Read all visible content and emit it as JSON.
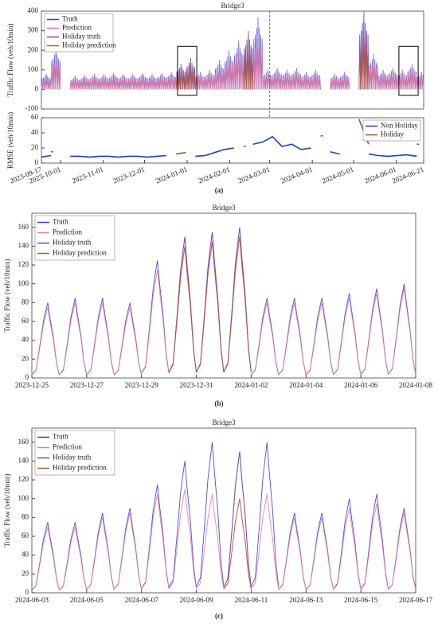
{
  "chart_data": [
    {
      "type": "line",
      "title": "Bridge3",
      "ylabel": "Traffic Flow (veh/10min)",
      "x": [
        "2023-09-17",
        "2023-09-24",
        "2023-10-01",
        "2023-10-08",
        "2023-10-15",
        "2023-10-22",
        "2023-10-29",
        "2023-11-05",
        "2023-11-12",
        "2023-11-19",
        "2023-11-26",
        "2023-12-03",
        "2023-12-10",
        "2023-12-17",
        "2023-12-24",
        "2023-12-31",
        "2024-01-07",
        "2024-01-14",
        "2024-01-21",
        "2024-01-28",
        "2024-02-04",
        "2024-02-11",
        "2024-02-18",
        "2024-02-25",
        "2024-03-03",
        "2024-03-10",
        "2024-03-17",
        "2024-03-24",
        "2024-03-31",
        "2024-04-07",
        "2024-04-14",
        "2024-04-21",
        "2024-04-28",
        "2024-05-05",
        "2024-05-12",
        "2024-05-19",
        "2024-05-26",
        "2024-06-02",
        "2024-06-09",
        "2024-06-16"
      ],
      "series": [
        {
          "name": "Truth",
          "color": "#3a3ad6",
          "values": [
            80,
            210,
            null,
            70,
            75,
            80,
            80,
            85,
            80,
            80,
            85,
            80,
            85,
            90,
            130,
            160,
            90,
            100,
            150,
            200,
            250,
            300,
            370,
            100,
            110,
            100,
            110,
            90,
            100,
            null,
            80,
            90,
            null,
            400,
            180,
            100,
            110,
            100,
            130,
            90
          ]
        },
        {
          "name": "Prediction",
          "color": "#e87a9a",
          "values": [
            60,
            160,
            null,
            60,
            65,
            70,
            70,
            70,
            70,
            70,
            70,
            70,
            70,
            75,
            100,
            120,
            80,
            85,
            120,
            160,
            200,
            230,
            280,
            85,
            95,
            85,
            95,
            80,
            85,
            null,
            70,
            75,
            null,
            300,
            150,
            85,
            95,
            85,
            110,
            80
          ]
        },
        {
          "name": "Holiday truth",
          "color": "#7a4ab0",
          "values": [
            null,
            null,
            null,
            null,
            null,
            null,
            null,
            null,
            null,
            null,
            null,
            null,
            null,
            null,
            130,
            160,
            null,
            null,
            null,
            null,
            null,
            300,
            null,
            null,
            null,
            null,
            null,
            null,
            null,
            null,
            null,
            null,
            null,
            400,
            null,
            null,
            null,
            null,
            null,
            null
          ]
        },
        {
          "name": "Holiday prediction",
          "color": "#b05a3a",
          "values": [
            null,
            null,
            null,
            null,
            null,
            null,
            null,
            null,
            null,
            null,
            null,
            null,
            null,
            null,
            100,
            120,
            null,
            null,
            null,
            null,
            null,
            230,
            null,
            null,
            null,
            null,
            null,
            null,
            null,
            null,
            null,
            null,
            null,
            300,
            null,
            null,
            null,
            null,
            null,
            null
          ]
        }
      ],
      "xlim": [
        "2023-09-17",
        "2024-06-21"
      ],
      "ylim": [
        -100,
        400
      ],
      "yticks": [
        -100,
        0,
        100,
        200,
        300,
        400
      ],
      "vline": "2024-03-01",
      "highlights": [
        [
          "2023-12-25",
          "2024-01-08"
        ],
        [
          "2024-06-03",
          "2024-06-17"
        ]
      ],
      "legend": "upper left"
    },
    {
      "type": "line",
      "ylabel": "RMSE (veh/10min)",
      "label": "(a)",
      "x": [
        "2023-09-17",
        "2023-09-24",
        "2023-10-01",
        "2023-10-08",
        "2023-10-15",
        "2023-10-22",
        "2023-10-29",
        "2023-11-05",
        "2023-11-12",
        "2023-11-19",
        "2023-11-26",
        "2023-12-03",
        "2023-12-10",
        "2023-12-17",
        "2023-12-24",
        "2023-12-31",
        "2024-01-07",
        "2024-01-14",
        "2024-01-21",
        "2024-01-28",
        "2024-02-04",
        "2024-02-11",
        "2024-02-18",
        "2024-02-25",
        "2024-03-03",
        "2024-03-10",
        "2024-03-17",
        "2024-03-24",
        "2024-03-31",
        "2024-04-07",
        "2024-04-14",
        "2024-04-21",
        "2024-04-28",
        "2024-05-05",
        "2024-05-12",
        "2024-05-19",
        "2024-05-26",
        "2024-06-02",
        "2024-06-09",
        "2024-06-16"
      ],
      "series": [
        {
          "name": "Non Holiday",
          "color": "#1f3fbf",
          "values": [
            8,
            10,
            null,
            9,
            9,
            8,
            9,
            9,
            8,
            9,
            9,
            8,
            9,
            10,
            null,
            null,
            9,
            10,
            14,
            18,
            20,
            null,
            25,
            28,
            35,
            22,
            25,
            18,
            20,
            null,
            15,
            12,
            null,
            null,
            12,
            10,
            9,
            10,
            11,
            9
          ]
        },
        {
          "name": "Holiday",
          "color": "#a0522d",
          "values": [
            null,
            15,
            null,
            null,
            null,
            null,
            null,
            null,
            null,
            null,
            null,
            null,
            null,
            null,
            12,
            14,
            null,
            null,
            null,
            null,
            null,
            22,
            null,
            null,
            null,
            null,
            null,
            null,
            null,
            36,
            null,
            null,
            null,
            58,
            25,
            null,
            null,
            null,
            null,
            25
          ]
        }
      ],
      "xlim": [
        "2023-09-17",
        "2024-06-21"
      ],
      "ylim": [
        0,
        60
      ],
      "yticks": [
        0,
        20,
        40,
        60
      ],
      "xticks": [
        "2023-09-17",
        "2023-10-01",
        "2023-11-01",
        "2023-12-01",
        "2024-01-01",
        "2024-02-01",
        "2024-03-01",
        "2024-04-01",
        "2024-05-01",
        "2024-06-01",
        "2024-06-21"
      ],
      "legend": "upper right"
    },
    {
      "type": "line",
      "title": "Bridge3",
      "ylabel": "Traffic Flow (veh/10min)",
      "label": "(b)",
      "x": [
        "2023-12-25",
        "2023-12-26",
        "2023-12-27",
        "2023-12-28",
        "2023-12-29",
        "2023-12-30",
        "2023-12-31",
        "2024-01-01",
        "2024-01-02",
        "2024-01-03",
        "2024-01-04",
        "2024-01-05",
        "2024-01-06",
        "2024-01-07"
      ],
      "series": [
        {
          "name": "Truth",
          "color": "#3a3ad6",
          "values": [
            80,
            85,
            85,
            80,
            125,
            150,
            155,
            160,
            85,
            85,
            85,
            90,
            95,
            100
          ]
        },
        {
          "name": "Prediction",
          "color": "#e87a9a",
          "values": [
            75,
            80,
            80,
            75,
            115,
            140,
            145,
            150,
            80,
            80,
            80,
            85,
            90,
            95
          ]
        },
        {
          "name": "Holiday truth",
          "color": "#7a4ab0",
          "values": [
            null,
            null,
            null,
            null,
            null,
            150,
            155,
            160,
            null,
            null,
            null,
            null,
            null,
            null
          ]
        },
        {
          "name": "Holiday prediction",
          "color": "#b05a3a",
          "values": [
            null,
            null,
            null,
            null,
            null,
            140,
            145,
            150,
            null,
            null,
            null,
            null,
            null,
            null
          ]
        }
      ],
      "xlim": [
        "2023-12-25",
        "2024-01-08"
      ],
      "ylim": [
        0,
        175
      ],
      "yticks": [
        0,
        20,
        40,
        60,
        80,
        100,
        120,
        140,
        160
      ],
      "xticks": [
        "2023-12-25",
        "2023-12-27",
        "2023-12-29",
        "2023-12-31",
        "2024-01-02",
        "2024-01-04",
        "2024-01-06",
        "2024-01-08"
      ],
      "legend": "upper left"
    },
    {
      "type": "line",
      "title": "Bridge3",
      "ylabel": "Traffic Flow (veh/10min)",
      "label": "(c)",
      "x": [
        "2024-06-03",
        "2024-06-04",
        "2024-06-05",
        "2024-06-06",
        "2024-06-07",
        "2024-06-08",
        "2024-06-09",
        "2024-06-10",
        "2024-06-11",
        "2024-06-12",
        "2024-06-13",
        "2024-06-14",
        "2024-06-15",
        "2024-06-16"
      ],
      "series": [
        {
          "name": "Truth",
          "color": "#3a3ad6",
          "values": [
            75,
            75,
            85,
            90,
            115,
            140,
            160,
            150,
            160,
            85,
            85,
            100,
            105,
            90
          ]
        },
        {
          "name": "Prediction",
          "color": "#e87a9a",
          "values": [
            70,
            70,
            80,
            85,
            105,
            110,
            105,
            100,
            105,
            80,
            80,
            90,
            95,
            85
          ]
        },
        {
          "name": "Holiday truth",
          "color": "#7a4ab0",
          "values": [
            null,
            null,
            null,
            null,
            null,
            null,
            null,
            150,
            null,
            null,
            null,
            null,
            null,
            null
          ]
        },
        {
          "name": "Holiday prediction",
          "color": "#b05a3a",
          "values": [
            null,
            null,
            null,
            null,
            null,
            null,
            null,
            100,
            null,
            null,
            null,
            null,
            null,
            null
          ]
        }
      ],
      "xlim": [
        "2024-06-03",
        "2024-06-17"
      ],
      "ylim": [
        0,
        175
      ],
      "yticks": [
        0,
        20,
        40,
        60,
        80,
        100,
        120,
        140,
        160
      ],
      "xticks": [
        "2024-06-03",
        "2024-06-05",
        "2024-06-07",
        "2024-06-09",
        "2024-06-11",
        "2024-06-13",
        "2024-06-15",
        "2024-06-17"
      ],
      "legend": "upper left"
    }
  ]
}
